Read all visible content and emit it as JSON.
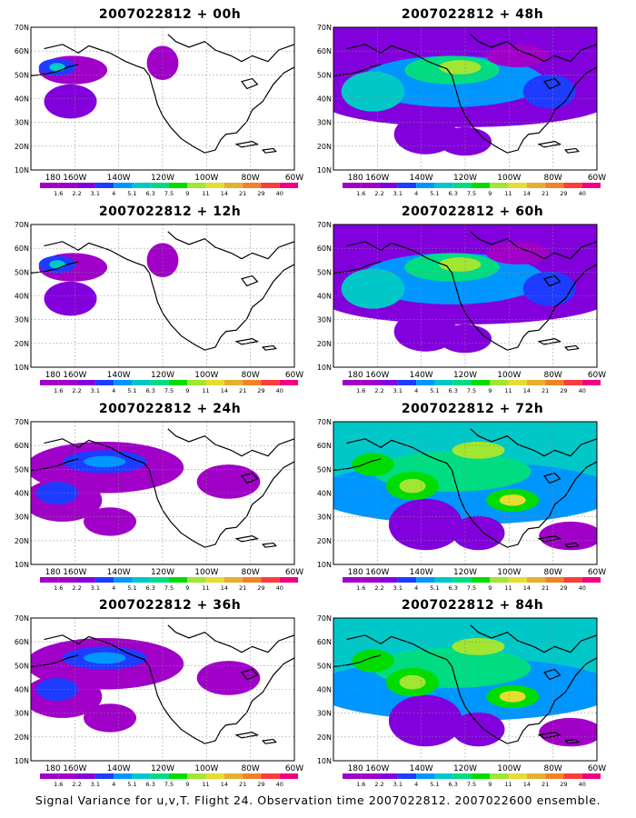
{
  "panels": [
    {
      "title": "2007022812 + 00h",
      "level": 0
    },
    {
      "title": "2007022812 + 48h",
      "level": 2
    },
    {
      "title": "2007022812 + 12h",
      "level": 0
    },
    {
      "title": "2007022812 + 60h",
      "level": 2
    },
    {
      "title": "2007022812 + 24h",
      "level": 1
    },
    {
      "title": "2007022812 + 72h",
      "level": 3
    },
    {
      "title": "2007022812 + 36h",
      "level": 1
    },
    {
      "title": "2007022812 + 84h",
      "level": 3
    }
  ],
  "lat_labels": [
    "70N",
    "60N",
    "50N",
    "40N",
    "30N",
    "20N",
    "10N"
  ],
  "lon_labels": [
    "180",
    "160W",
    "140W",
    "120W",
    "100W",
    "80W",
    "60W"
  ],
  "colorbar": {
    "labels": [
      "1.6",
      "2.2",
      "3.1",
      "4",
      "5.1",
      "6.3",
      "7.5",
      "9",
      "11",
      "14",
      "21",
      "29",
      "40"
    ],
    "colors": [
      "#a000c8",
      "#8200dc",
      "#1e3cff",
      "#0096ff",
      "#00c8c8",
      "#00dc82",
      "#00dc00",
      "#a0e632",
      "#e6dc32",
      "#e6af2d",
      "#f08228",
      "#fa3c3c",
      "#f00082"
    ]
  },
  "footer": "Signal Variance for u,v,T. Flight 24. Observation time 2007022812. 2007022600 ensemble."
}
